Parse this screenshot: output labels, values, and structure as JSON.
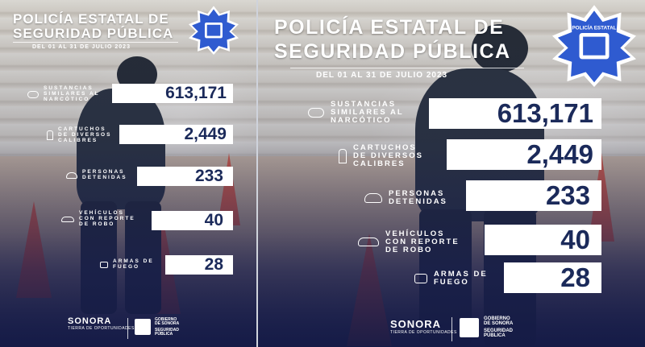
{
  "title_line1": "POLICÍA ESTATAL DE",
  "title_line2": "SEGURIDAD PÚBLICA",
  "date_range": "DEL 01 AL 31 DE JULIO 2023",
  "badge_text": "POLICÍA ESTATAL",
  "stats": [
    {
      "label_lines": [
        "SUSTANCIAS",
        "SIMILARES AL",
        "NARCÓTICO"
      ],
      "value": "613,171",
      "icon": "drugs-icon"
    },
    {
      "label_lines": [
        "CARTUCHOS",
        "DE DIVERSOS",
        "CALIBRES"
      ],
      "value": "2,449",
      "icon": "cartridges-icon"
    },
    {
      "label_lines": [
        "PERSONAS",
        "DETENIDAS"
      ],
      "value": "233",
      "icon": "people-icon"
    },
    {
      "label_lines": [
        "VEHÍCULOS",
        "CON REPORTE",
        "DE ROBO"
      ],
      "value": "40",
      "icon": "car-icon"
    },
    {
      "label_lines": [
        "ARMAS DE",
        "FUEGO"
      ],
      "value": "28",
      "icon": "gun-icon"
    }
  ],
  "footer": {
    "brand": "SONORA",
    "brand_tag": "TIERRA DE OPORTUNIDADES",
    "gov_line1": "GOBIERNO",
    "gov_line2": "DE SONORA",
    "dept_line1": "SEGURIDAD",
    "dept_line2": "PÚBLICA"
  },
  "colors": {
    "navy": "#1b2a5a",
    "badge_blue": "#2f5bd0",
    "cone": "#d64e3a"
  }
}
